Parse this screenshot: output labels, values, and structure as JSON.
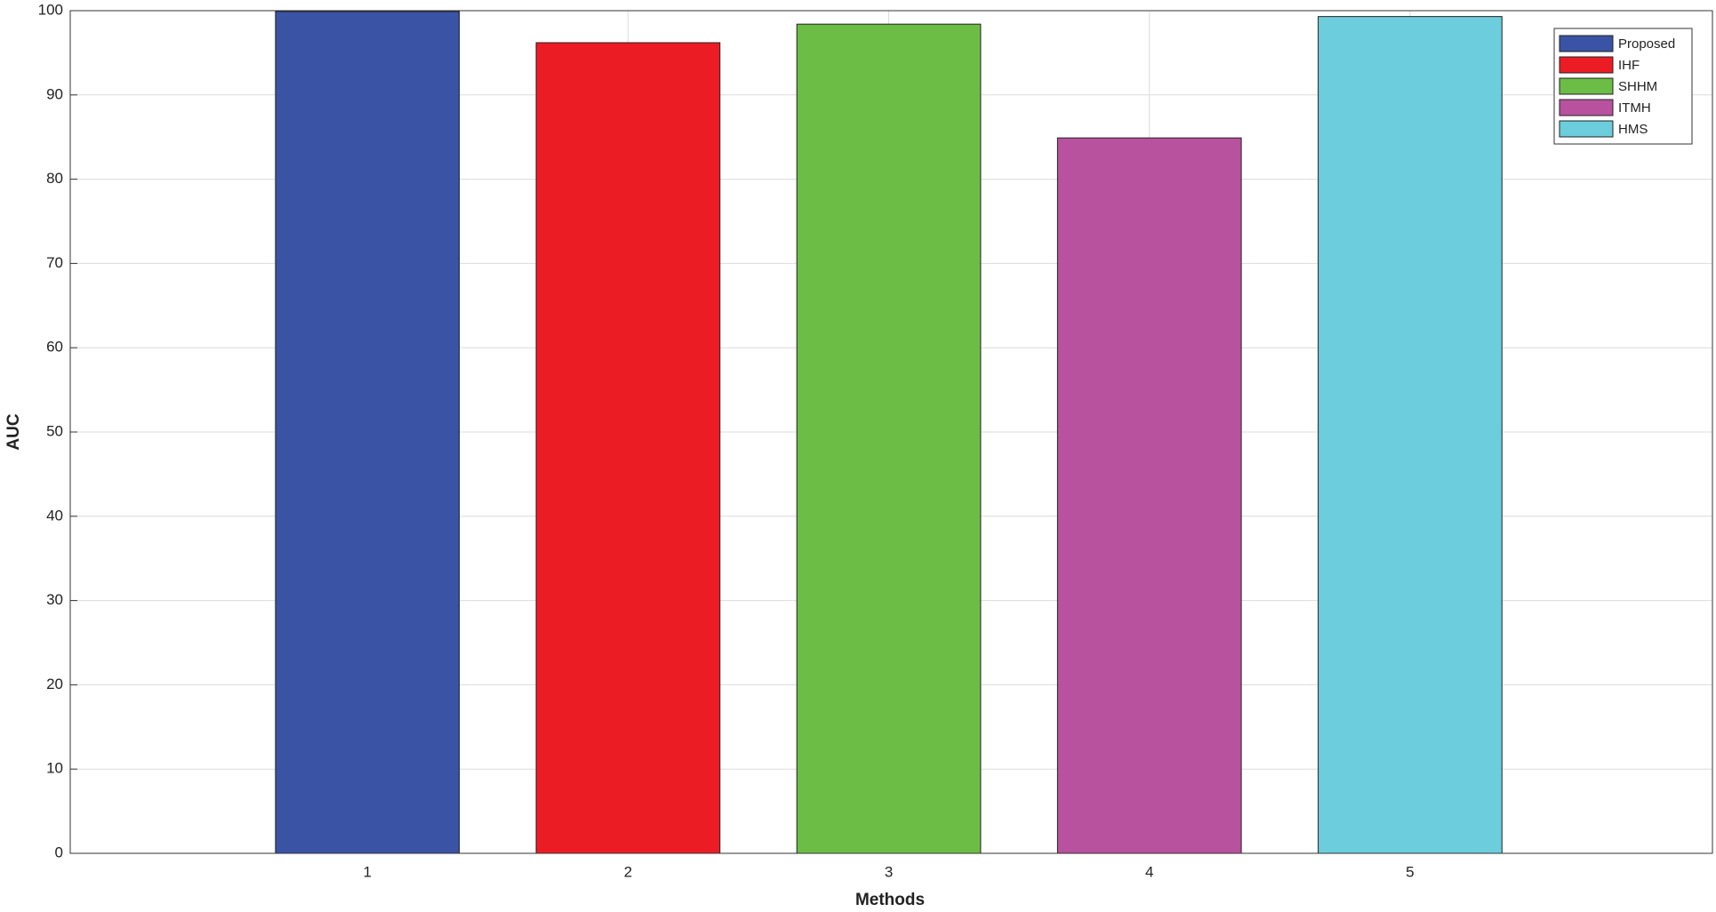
{
  "chart_data": {
    "type": "bar",
    "x_label": "Methods",
    "y_label": "AUC",
    "x": [
      1,
      2,
      3,
      4,
      5
    ],
    "series": [
      {
        "name": "Proposed",
        "color": "#3a53a4",
        "values": [
          99.9,
          null,
          null,
          null,
          null
        ]
      },
      {
        "name": "IHF",
        "color": "#ec1c24",
        "values": [
          null,
          96.2,
          null,
          null,
          null
        ]
      },
      {
        "name": "SHHM",
        "color": "#6cbd45",
        "values": [
          null,
          null,
          98.4,
          null,
          null
        ]
      },
      {
        "name": "ITMH",
        "color": "#b8529e",
        "values": [
          null,
          null,
          null,
          84.9,
          null
        ]
      },
      {
        "name": "HMS",
        "color": "#6ccddc",
        "values": [
          null,
          null,
          null,
          null,
          99.3
        ]
      }
    ],
    "xlim": [
      -0.14,
      6.16
    ],
    "xticks": [
      1,
      2,
      3,
      4,
      5
    ],
    "ylim": [
      0,
      100
    ],
    "yticks": [
      0,
      10,
      20,
      30,
      40,
      50,
      60,
      70,
      80,
      90,
      100
    ],
    "grid": true,
    "legend": "top-right"
  }
}
